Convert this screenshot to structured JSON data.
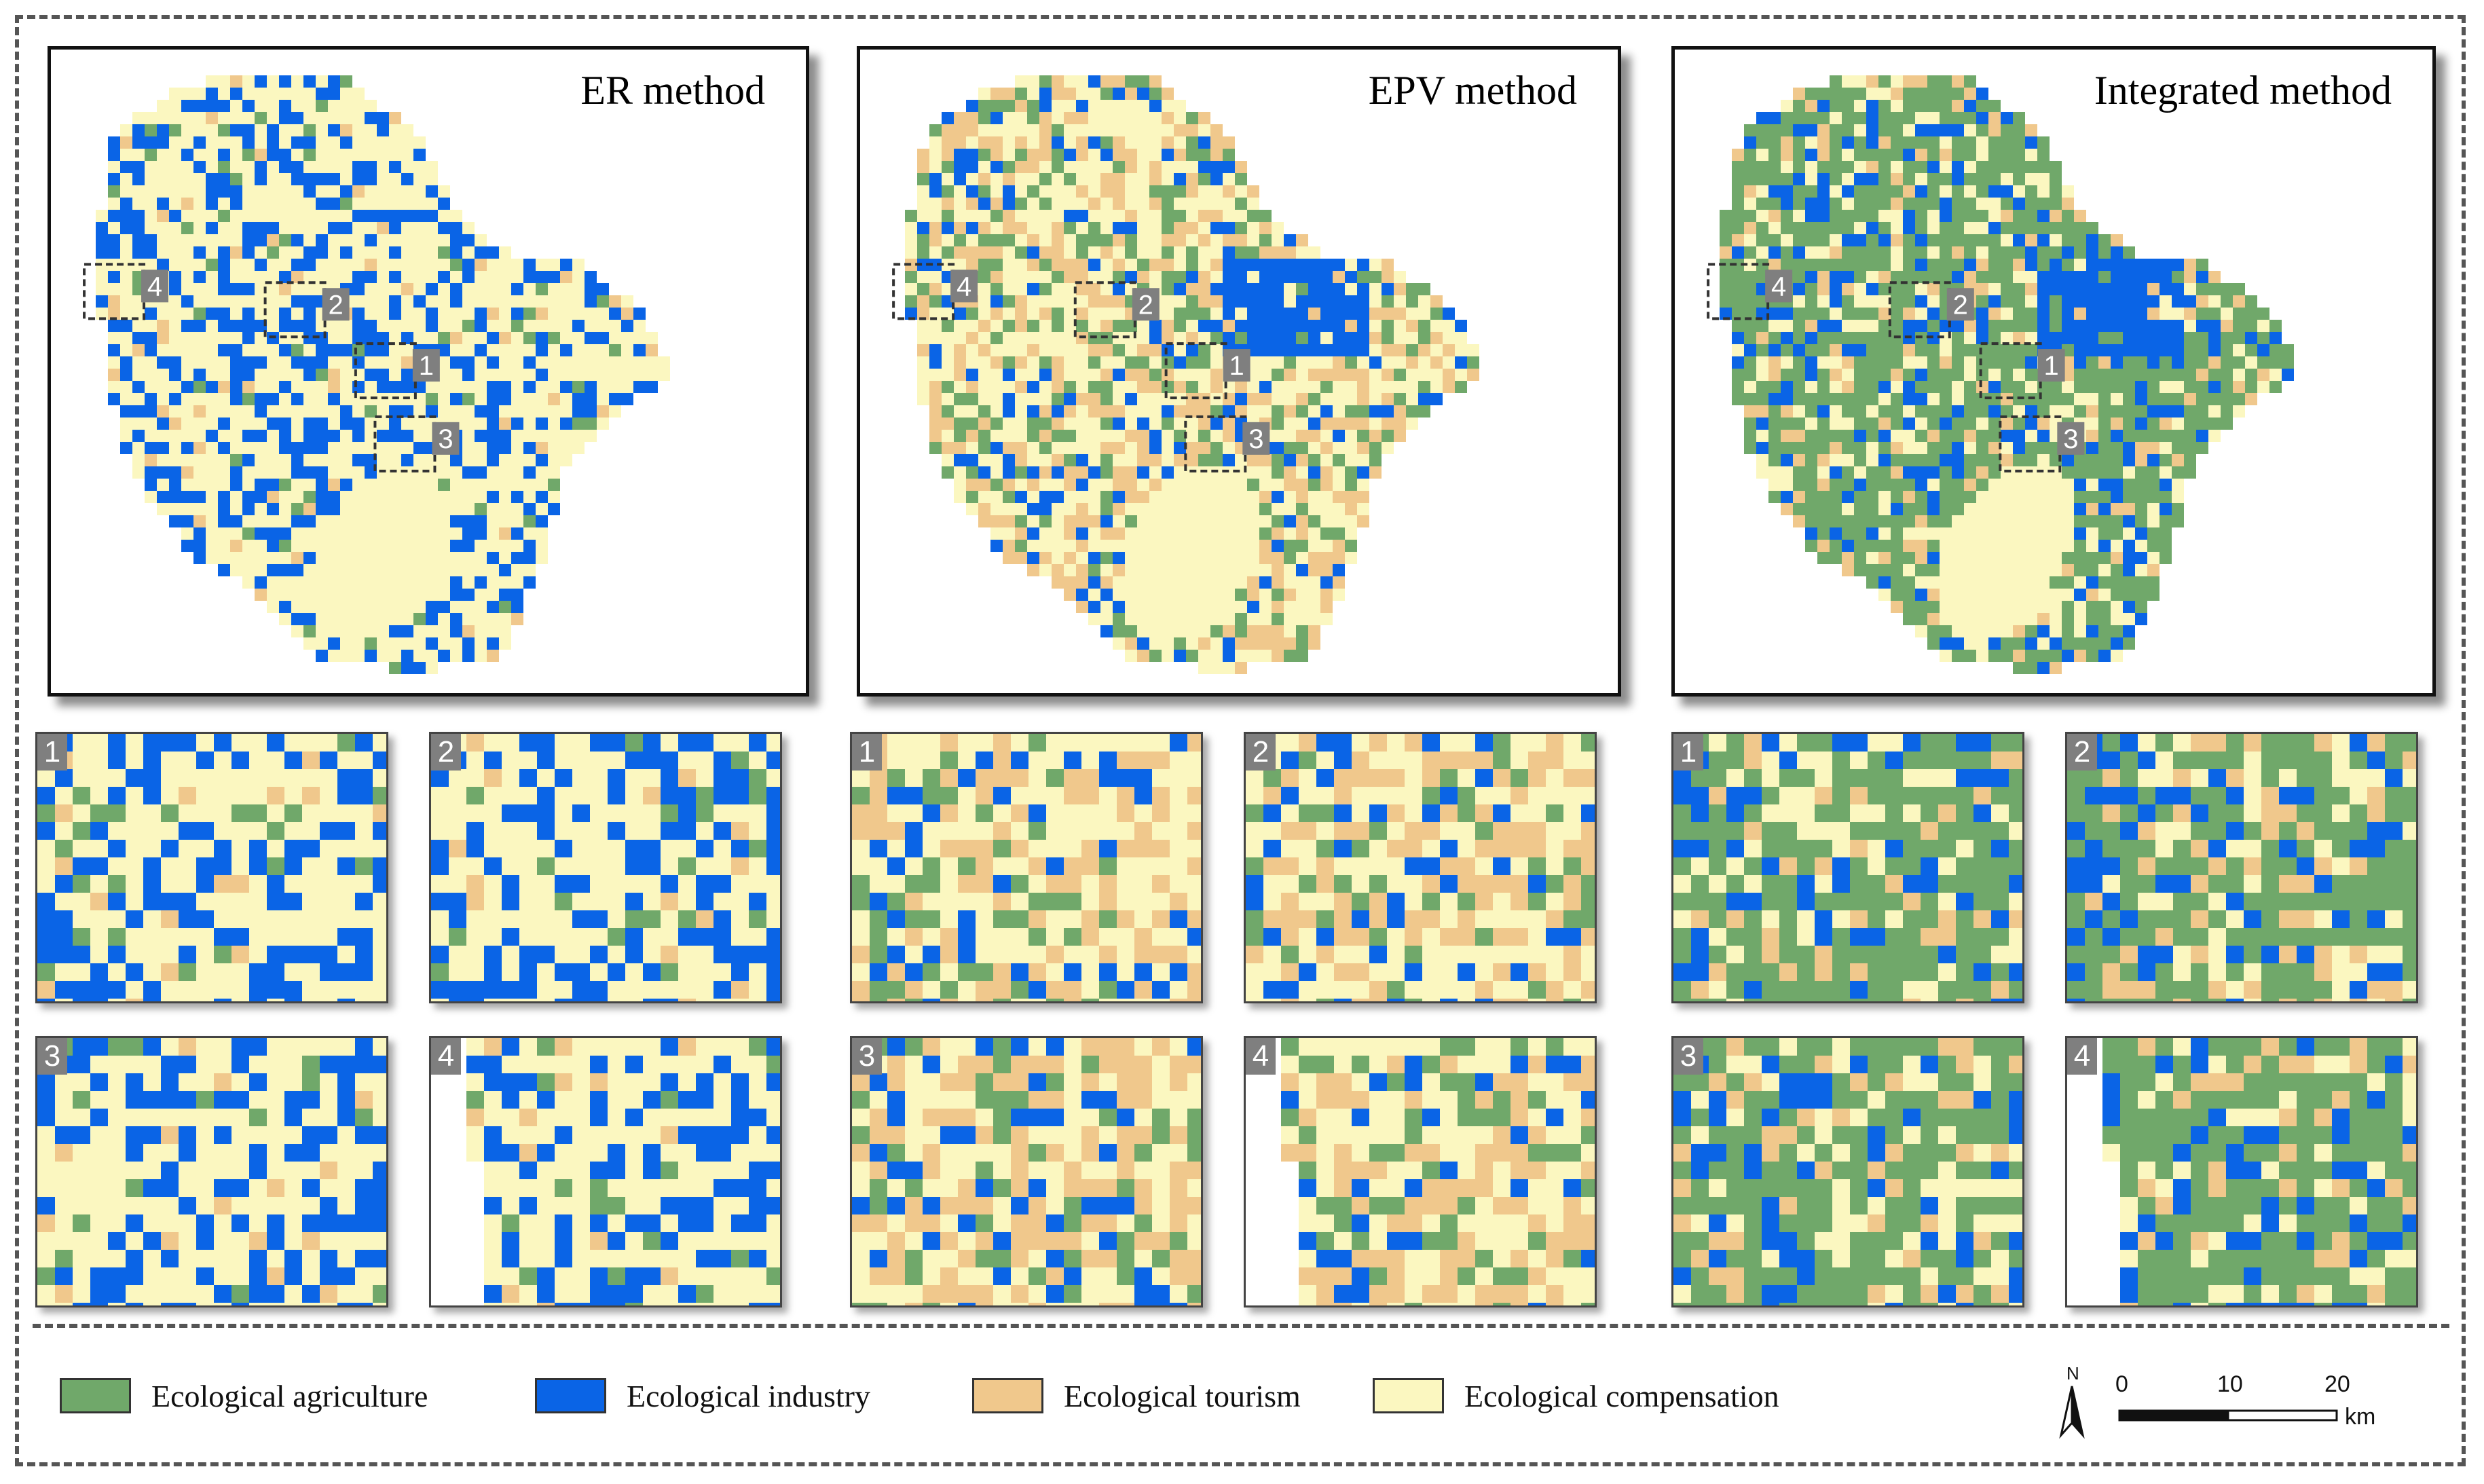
{
  "colors": {
    "agriculture": "#70a86a",
    "industry": "#0a64e6",
    "tourism": "#f0c88c",
    "compensation": "#fbf7c0"
  },
  "maps": [
    {
      "title": "ER method",
      "dominant": "compensation",
      "mix": {
        "compensation": 0.58,
        "industry": 0.32,
        "agriculture": 0.05,
        "tourism": 0.05
      }
    },
    {
      "title": "EPV method",
      "dominant": "compensation",
      "mix": {
        "compensation": 0.4,
        "tourism": 0.3,
        "agriculture": 0.18,
        "industry": 0.12
      }
    },
    {
      "title": "Integrated method",
      "dominant": "agriculture",
      "mix": {
        "agriculture": 0.55,
        "compensation": 0.18,
        "industry": 0.17,
        "tourism": 0.1
      }
    }
  ],
  "zoom_labels": [
    "1",
    "2",
    "3",
    "4"
  ],
  "box_labels": [
    "4",
    "2",
    "1",
    "3"
  ],
  "legend": [
    {
      "key": "agriculture",
      "label": "Ecological agriculture"
    },
    {
      "key": "industry",
      "label": "Ecological industry"
    },
    {
      "key": "tourism",
      "label": "Ecological tourism"
    },
    {
      "key": "compensation",
      "label": "Ecological compensation"
    }
  ],
  "scale": {
    "north": "N",
    "ticks": [
      "0",
      "10",
      "20"
    ],
    "unit": "km"
  }
}
